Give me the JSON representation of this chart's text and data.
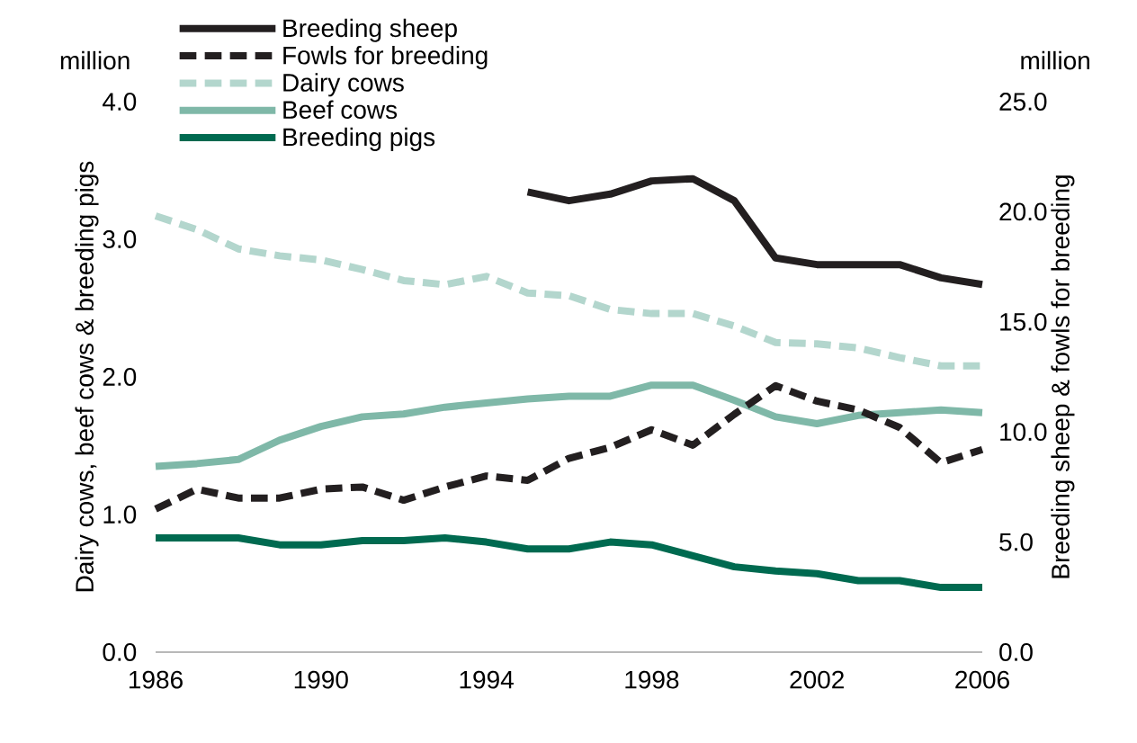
{
  "chart_data": {
    "type": "line",
    "ylabel": "Dairy cows, beef cows & breeding pigs",
    "y2label": "Breeding sheep & fowls for breeding",
    "annotations": [
      "million",
      "million"
    ],
    "x": [
      1986,
      1987,
      1988,
      1989,
      1990,
      1991,
      1992,
      1993,
      1994,
      1995,
      1996,
      1997,
      1998,
      1999,
      2000,
      2001,
      2002,
      2003,
      2004,
      2005,
      2006
    ],
    "series": [
      {
        "name": "Breeding sheep",
        "color": "#231f20",
        "line_style": "solid",
        "axis": "y2",
        "x": [
          1995,
          1996,
          1997,
          1998,
          1999,
          2000,
          2001,
          2002,
          2003,
          2004,
          2005,
          2006
        ],
        "values": [
          20.9,
          20.5,
          20.8,
          21.4,
          21.5,
          20.5,
          17.9,
          17.6,
          17.6,
          17.6,
          17.0,
          16.7
        ]
      },
      {
        "name": "Fowls for breeding",
        "color": "#231f20",
        "line_style": "dashed",
        "axis": "y2",
        "values": [
          6.5,
          7.4,
          7.0,
          7.0,
          7.4,
          7.5,
          6.9,
          7.5,
          8.0,
          7.8,
          8.8,
          9.3,
          10.1,
          9.4,
          10.8,
          12.1,
          11.4,
          11.0,
          10.2,
          8.6,
          9.2
        ]
      },
      {
        "name": "Dairy cows",
        "color": "#b3d6cd",
        "line_style": "dashed",
        "values": [
          3.17,
          3.07,
          2.93,
          2.88,
          2.85,
          2.78,
          2.7,
          2.67,
          2.73,
          2.61,
          2.59,
          2.49,
          2.46,
          2.46,
          2.37,
          2.25,
          2.24,
          2.21,
          2.14,
          2.08,
          2.08
        ]
      },
      {
        "name": "Beef cows",
        "color": "#7fb8a8",
        "line_style": "solid",
        "values": [
          1.35,
          1.37,
          1.4,
          1.54,
          1.64,
          1.71,
          1.73,
          1.78,
          1.81,
          1.84,
          1.86,
          1.86,
          1.94,
          1.94,
          1.83,
          1.71,
          1.66,
          1.72,
          1.74,
          1.76,
          1.74
        ]
      },
      {
        "name": "Breeding pigs",
        "color": "#006a50",
        "line_style": "solid",
        "values": [
          0.83,
          0.83,
          0.83,
          0.78,
          0.78,
          0.81,
          0.81,
          0.83,
          0.8,
          0.75,
          0.75,
          0.8,
          0.78,
          0.7,
          0.62,
          0.59,
          0.57,
          0.52,
          0.52,
          0.47,
          0.47
        ]
      }
    ],
    "xlim": [
      1986,
      2006
    ],
    "xticks": [
      1986,
      1990,
      1994,
      1998,
      2002,
      2006
    ],
    "ylim": [
      0,
      4
    ],
    "yticks": [
      {
        "value": 0,
        "label": "0.0"
      },
      {
        "value": 1,
        "label": "1.0"
      },
      {
        "value": 2,
        "label": "2.0"
      },
      {
        "value": 3,
        "label": "3.0"
      },
      {
        "value": 4,
        "label": "4.0"
      }
    ],
    "y2lim": [
      0,
      25
    ],
    "y2ticks": [
      {
        "value": 0,
        "label": "0.0"
      },
      {
        "value": 5,
        "label": "5.0"
      },
      {
        "value": 10,
        "label": "10.0"
      },
      {
        "value": 15,
        "label": "15.0"
      },
      {
        "value": 20,
        "label": "20.0"
      },
      {
        "value": 25,
        "label": "25.0"
      }
    ],
    "legend": "top left"
  }
}
